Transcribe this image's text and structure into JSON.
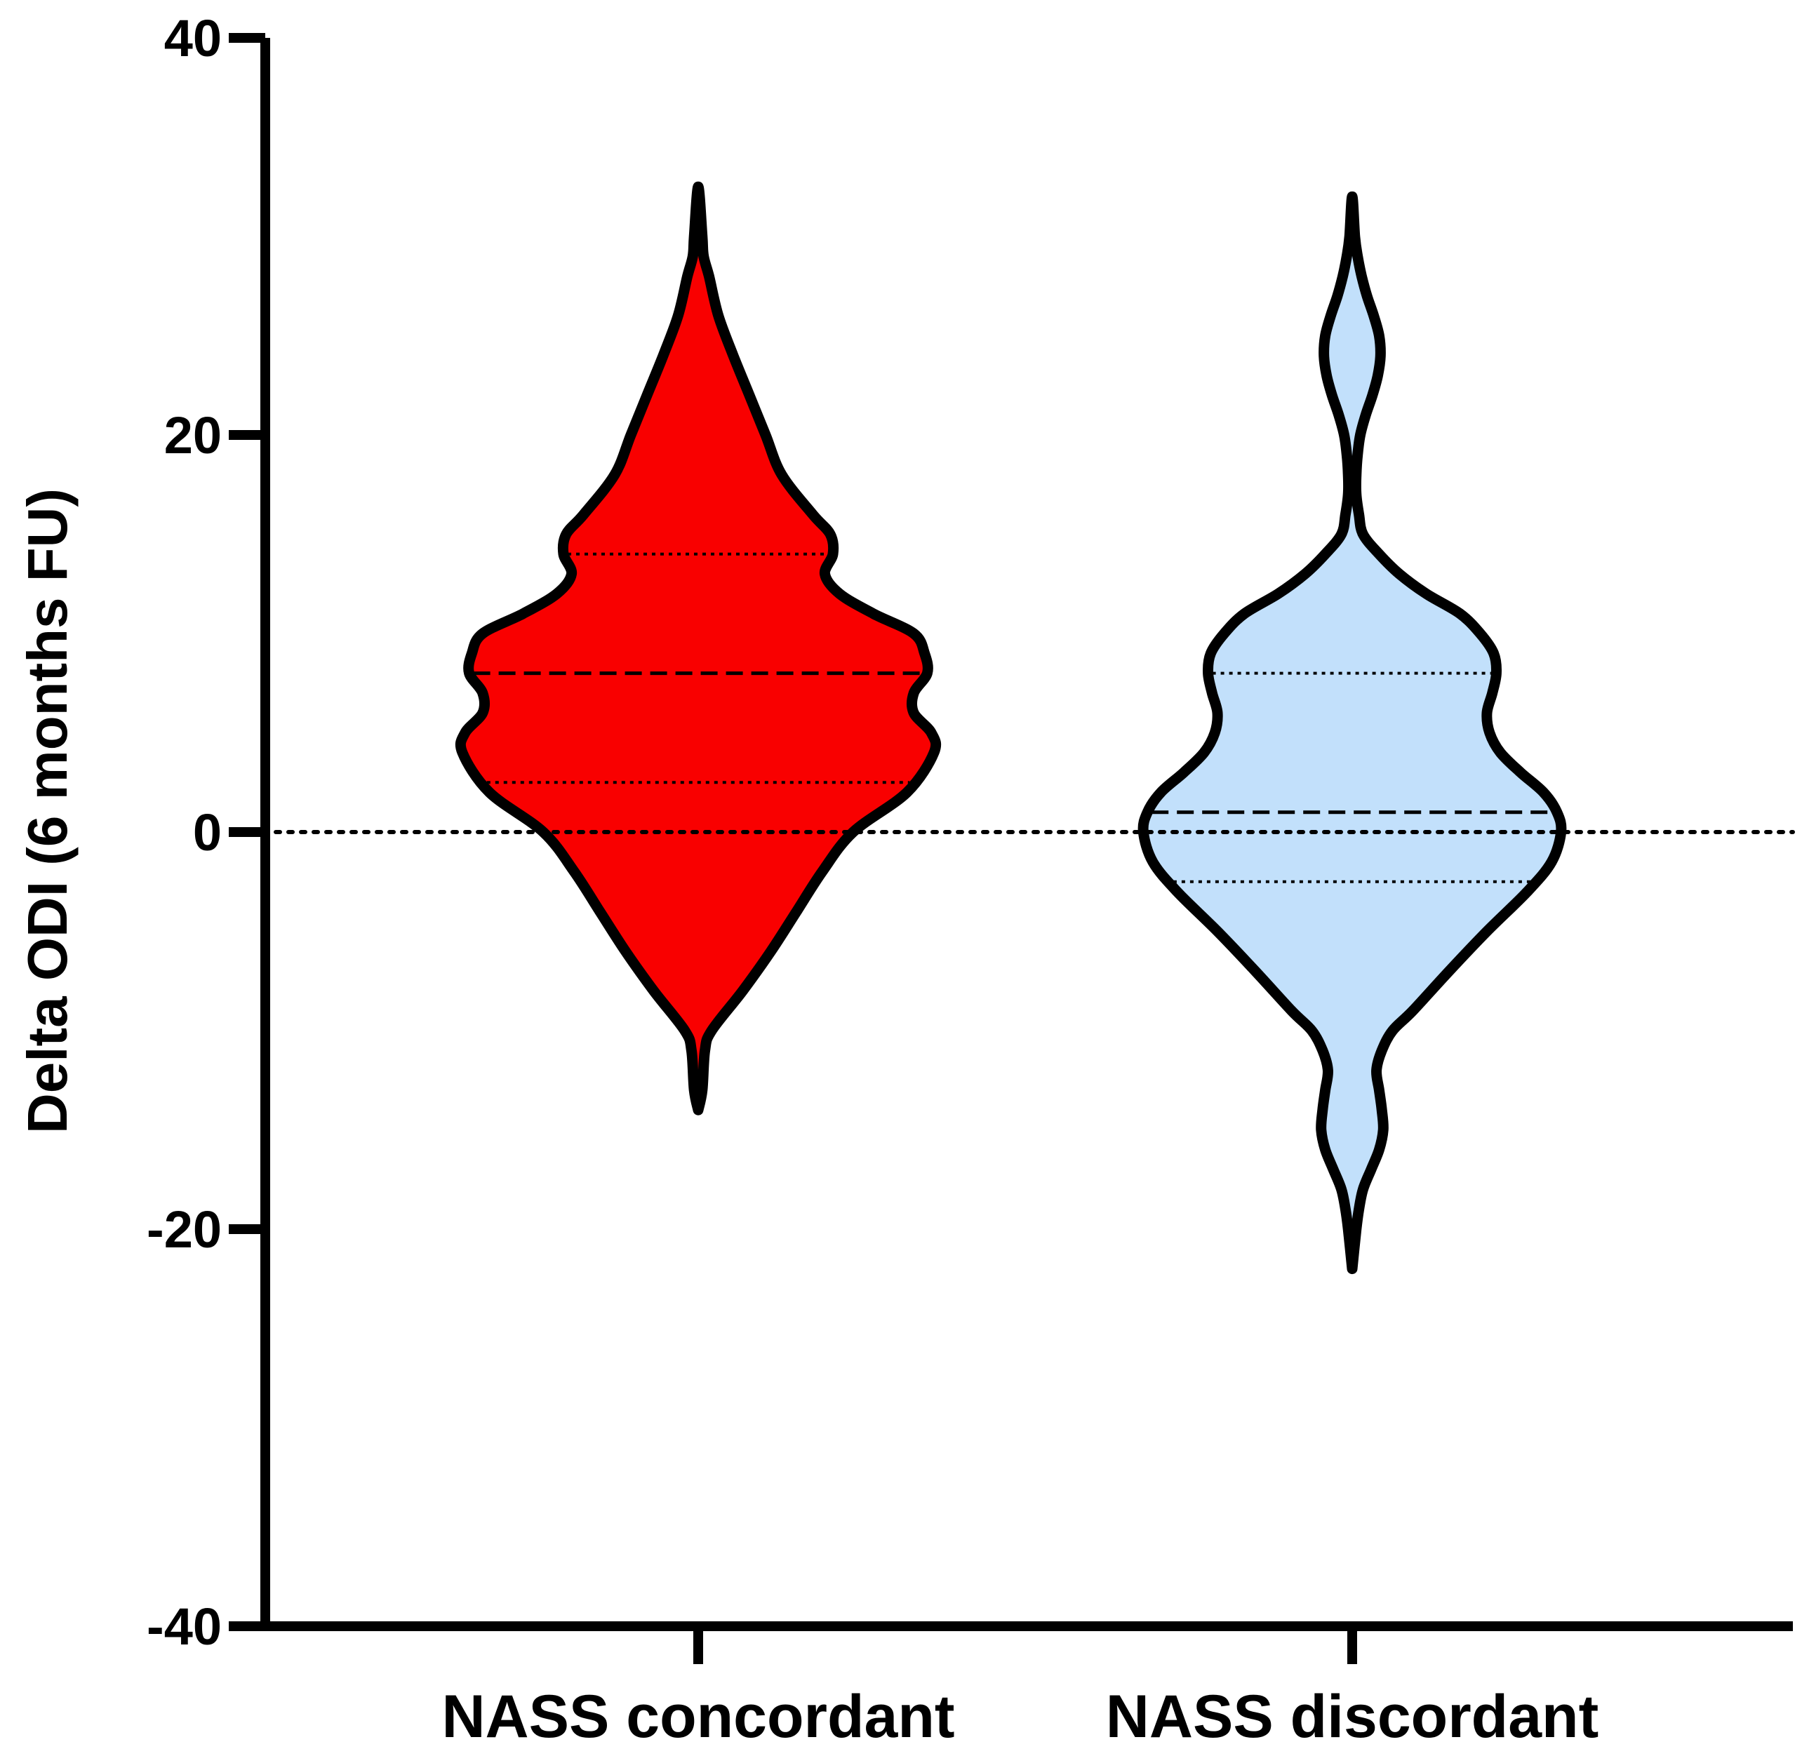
{
  "chart_data": {
    "type": "violin",
    "title": "",
    "xlabel": "",
    "ylabel": "Delta ODI (6 months FU)",
    "ylim": [
      -40,
      40
    ],
    "yticks": [
      {
        "value": 40,
        "label": "40"
      },
      {
        "value": 20,
        "label": "20"
      },
      {
        "value": 0,
        "label": "0"
      },
      {
        "value": -20,
        "label": "-20"
      },
      {
        "value": -40,
        "label": "-40"
      }
    ],
    "reference_line": {
      "value": 0,
      "style": "dotted"
    },
    "categories": [
      "NASS concordant",
      "NASS discordant"
    ],
    "series": [
      {
        "name": "NASS concordant",
        "color": "#f90000",
        "min": -14,
        "max": 32.5,
        "q1": 2.5,
        "median": 8,
        "q3": 14,
        "profile": [
          [
            -14,
            0.0
          ],
          [
            -13,
            0.03
          ],
          [
            -11,
            0.05
          ],
          [
            -10,
            0.1
          ],
          [
            -8,
            0.33
          ],
          [
            -6,
            0.54
          ],
          [
            -4,
            0.73
          ],
          [
            -2,
            0.92
          ],
          [
            0,
            1.15
          ],
          [
            2,
            1.55
          ],
          [
            4,
            1.75
          ],
          [
            5,
            1.73
          ],
          [
            6,
            1.6
          ],
          [
            7,
            1.6
          ],
          [
            8,
            1.7
          ],
          [
            9,
            1.68
          ],
          [
            10,
            1.6
          ],
          [
            11,
            1.3
          ],
          [
            12,
            1.05
          ],
          [
            13,
            0.94
          ],
          [
            14,
            1.0
          ],
          [
            15,
            0.98
          ],
          [
            16,
            0.85
          ],
          [
            18,
            0.62
          ],
          [
            20,
            0.5
          ],
          [
            22,
            0.38
          ],
          [
            24,
            0.26
          ],
          [
            26,
            0.15
          ],
          [
            28,
            0.08
          ],
          [
            29,
            0.04
          ],
          [
            30,
            0.03
          ],
          [
            32.5,
            0.0
          ]
        ]
      },
      {
        "name": "NASS discordant",
        "color": "#c2e0fb",
        "min": -22,
        "max": 32,
        "q1": -2.5,
        "median": 1,
        "q3": 8,
        "profile": [
          [
            -22,
            0.0
          ],
          [
            -20,
            0.03
          ],
          [
            -19,
            0.05
          ],
          [
            -18,
            0.08
          ],
          [
            -17,
            0.14
          ],
          [
            -16,
            0.2
          ],
          [
            -15,
            0.23
          ],
          [
            -14,
            0.22
          ],
          [
            -13,
            0.2
          ],
          [
            -12,
            0.18
          ],
          [
            -11,
            0.22
          ],
          [
            -10,
            0.3
          ],
          [
            -9,
            0.45
          ],
          [
            -7,
            0.72
          ],
          [
            -5,
            1.0
          ],
          [
            -3,
            1.3
          ],
          [
            -1.5,
            1.48
          ],
          [
            0,
            1.55
          ],
          [
            1,
            1.52
          ],
          [
            2,
            1.42
          ],
          [
            3,
            1.25
          ],
          [
            4,
            1.1
          ],
          [
            5,
            1.02
          ],
          [
            6,
            1.0
          ],
          [
            7,
            1.04
          ],
          [
            8,
            1.07
          ],
          [
            9,
            1.05
          ],
          [
            10,
            0.95
          ],
          [
            11,
            0.8
          ],
          [
            12,
            0.55
          ],
          [
            13,
            0.35
          ],
          [
            14,
            0.2
          ],
          [
            15,
            0.08
          ],
          [
            16,
            0.05
          ],
          [
            17,
            0.03
          ],
          [
            18,
            0.03
          ],
          [
            19,
            0.04
          ],
          [
            20,
            0.06
          ],
          [
            21,
            0.1
          ],
          [
            22,
            0.15
          ],
          [
            23,
            0.19
          ],
          [
            24,
            0.21
          ],
          [
            25,
            0.2
          ],
          [
            26,
            0.16
          ],
          [
            27,
            0.11
          ],
          [
            28,
            0.07
          ],
          [
            29,
            0.04
          ],
          [
            30,
            0.02
          ],
          [
            32,
            0.0
          ]
        ]
      }
    ]
  }
}
